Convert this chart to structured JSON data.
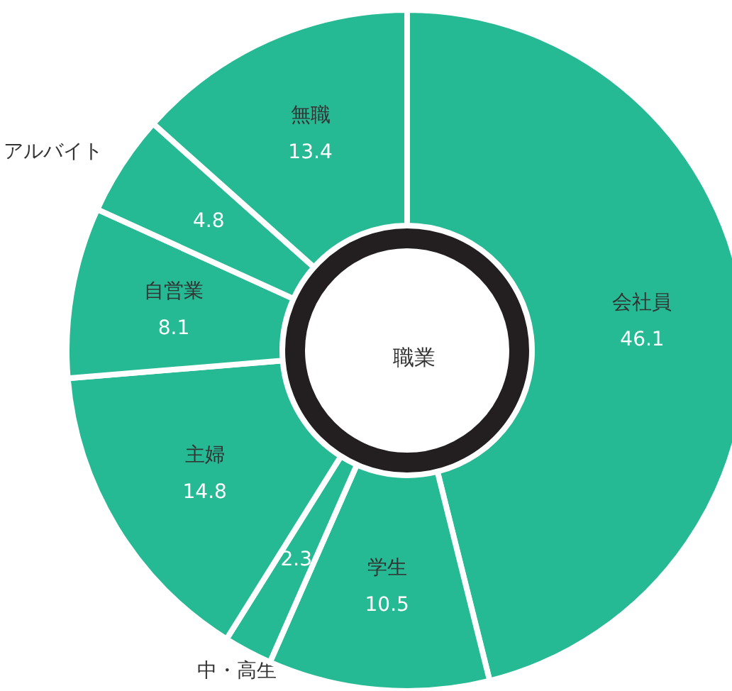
{
  "chart_data": {
    "type": "donut",
    "title": "職業",
    "categories": [
      "会社員",
      "学生",
      "中・高生",
      "主婦",
      "自営業",
      "アルバイト",
      "無職"
    ],
    "values": [
      46.1,
      10.5,
      2.3,
      14.8,
      8.1,
      4.8,
      13.4
    ],
    "colors": [
      "#25b994",
      "#25b994",
      "#25b994",
      "#25b994",
      "#25b994",
      "#25b994",
      "#25b994"
    ],
    "data_labels": true,
    "legend": false
  }
}
